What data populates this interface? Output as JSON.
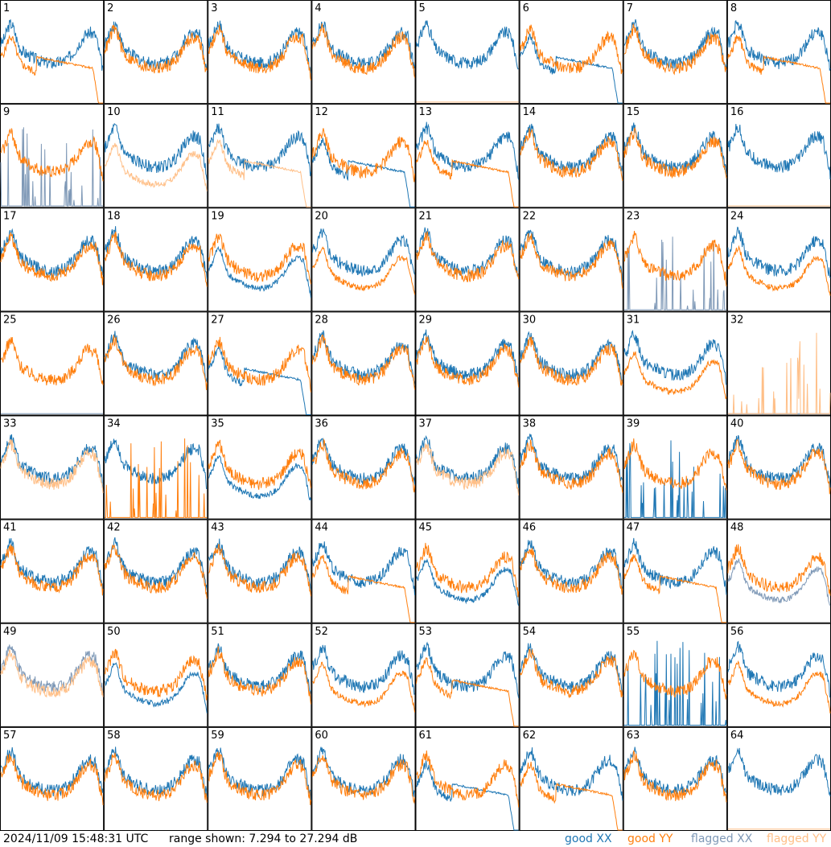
{
  "colors": {
    "good_xx": "#1f77b4",
    "good_yy": "#ff7f0e",
    "flagged_xx": "#7f99b7",
    "flagged_yy": "#ffbf87",
    "border": "#000000"
  },
  "footer": {
    "timestamp": "2024/11/09 15:48:31 UTC",
    "range_text": "range shown: 7.294 to 27.294 dB",
    "legend": {
      "good_xx": "good XX",
      "good_yy": "good YY",
      "flagged_xx": "flagged XX",
      "flagged_yy": "flagged YY"
    }
  },
  "chart_data": {
    "type": "line",
    "layout": "grid 8x8 small multiples",
    "ylim": [
      7.294,
      27.294
    ],
    "yunit": "dB",
    "series": [
      "good XX",
      "good YY",
      "flagged XX",
      "flagged YY"
    ],
    "grid": false,
    "legend_position": "bottom-right",
    "tiles": [
      {
        "id": "1",
        "xx": "good",
        "yy": "good",
        "xx_shape": "noisy",
        "yy_shape": "rolloff"
      },
      {
        "id": "2",
        "xx": "good",
        "yy": "good",
        "xx_shape": "normal",
        "yy_shape": "normal"
      },
      {
        "id": "3",
        "xx": "good",
        "yy": "good",
        "xx_shape": "normal",
        "yy_shape": "normal"
      },
      {
        "id": "4",
        "xx": "good",
        "yy": "good",
        "xx_shape": "normal",
        "yy_shape": "normal"
      },
      {
        "id": "5",
        "xx": "good",
        "yy": "flagged",
        "xx_shape": "normal",
        "yy_shape": "flat"
      },
      {
        "id": "6",
        "xx": "good",
        "yy": "good",
        "xx_shape": "rolloff",
        "yy_shape": "normal"
      },
      {
        "id": "7",
        "xx": "good",
        "yy": "good",
        "xx_shape": "normal",
        "yy_shape": "normal"
      },
      {
        "id": "8",
        "xx": "good",
        "yy": "good",
        "xx_shape": "normal",
        "yy_shape": "rolloff"
      },
      {
        "id": "9",
        "xx": "flagged",
        "yy": "good",
        "xx_shape": "spikes",
        "yy_shape": "normal"
      },
      {
        "id": "10",
        "xx": "good",
        "yy": "flagged",
        "xx_shape": "normal",
        "yy_shape": "low"
      },
      {
        "id": "11",
        "xx": "good",
        "yy": "flagged",
        "xx_shape": "normal",
        "yy_shape": "rolloff"
      },
      {
        "id": "12",
        "xx": "good",
        "yy": "good",
        "xx_shape": "rolloff",
        "yy_shape": "normal"
      },
      {
        "id": "13",
        "xx": "good",
        "yy": "good",
        "xx_shape": "normal",
        "yy_shape": "rolloff"
      },
      {
        "id": "14",
        "xx": "good",
        "yy": "good",
        "xx_shape": "normal",
        "yy_shape": "normal"
      },
      {
        "id": "15",
        "xx": "good",
        "yy": "good",
        "xx_shape": "normal",
        "yy_shape": "normal"
      },
      {
        "id": "16",
        "xx": "good",
        "yy": "flagged",
        "xx_shape": "normal",
        "yy_shape": "flat"
      },
      {
        "id": "17",
        "xx": "good",
        "yy": "good",
        "xx_shape": "normal",
        "yy_shape": "normal"
      },
      {
        "id": "18",
        "xx": "good",
        "yy": "good",
        "xx_shape": "normal",
        "yy_shape": "normal"
      },
      {
        "id": "19",
        "xx": "good",
        "yy": "good",
        "xx_shape": "low",
        "yy_shape": "normal"
      },
      {
        "id": "20",
        "xx": "good",
        "yy": "good",
        "xx_shape": "normal",
        "yy_shape": "low"
      },
      {
        "id": "21",
        "xx": "good",
        "yy": "good",
        "xx_shape": "normal",
        "yy_shape": "normal"
      },
      {
        "id": "22",
        "xx": "good",
        "yy": "good",
        "xx_shape": "normal",
        "yy_shape": "normal"
      },
      {
        "id": "23",
        "xx": "flagged",
        "yy": "good",
        "xx_shape": "spikes",
        "yy_shape": "normal"
      },
      {
        "id": "24",
        "xx": "good",
        "yy": "good",
        "xx_shape": "normal",
        "yy_shape": "low"
      },
      {
        "id": "25",
        "xx": "flagged",
        "yy": "good",
        "xx_shape": "flat",
        "yy_shape": "normal"
      },
      {
        "id": "26",
        "xx": "good",
        "yy": "good",
        "xx_shape": "normal",
        "yy_shape": "normal"
      },
      {
        "id": "27",
        "xx": "good",
        "yy": "good",
        "xx_shape": "rolloff",
        "yy_shape": "normal"
      },
      {
        "id": "28",
        "xx": "good",
        "yy": "good",
        "xx_shape": "normal",
        "yy_shape": "normal"
      },
      {
        "id": "29",
        "xx": "good",
        "yy": "good",
        "xx_shape": "normal",
        "yy_shape": "normal"
      },
      {
        "id": "30",
        "xx": "good",
        "yy": "good",
        "xx_shape": "normal",
        "yy_shape": "normal"
      },
      {
        "id": "31",
        "xx": "good",
        "yy": "good",
        "xx_shape": "normal",
        "yy_shape": "low"
      },
      {
        "id": "32",
        "xx": "flagged",
        "yy": "flagged",
        "xx_shape": "flat",
        "yy_shape": "spikes"
      },
      {
        "id": "33",
        "xx": "good",
        "yy": "flagged",
        "xx_shape": "normal",
        "yy_shape": "normal"
      },
      {
        "id": "34",
        "xx": "good",
        "yy": "good",
        "xx_shape": "normal",
        "yy_shape": "spikes"
      },
      {
        "id": "35",
        "xx": "good",
        "yy": "good",
        "xx_shape": "low",
        "yy_shape": "normal"
      },
      {
        "id": "36",
        "xx": "good",
        "yy": "good",
        "xx_shape": "normal",
        "yy_shape": "normal"
      },
      {
        "id": "37",
        "xx": "good",
        "yy": "flagged",
        "xx_shape": "normal",
        "yy_shape": "normal"
      },
      {
        "id": "38",
        "xx": "good",
        "yy": "good",
        "xx_shape": "normal",
        "yy_shape": "normal"
      },
      {
        "id": "39",
        "xx": "good",
        "yy": "good",
        "xx_shape": "spikes",
        "yy_shape": "normal"
      },
      {
        "id": "40",
        "xx": "good",
        "yy": "good",
        "xx_shape": "normal",
        "yy_shape": "normal"
      },
      {
        "id": "41",
        "xx": "good",
        "yy": "good",
        "xx_shape": "normal",
        "yy_shape": "normal"
      },
      {
        "id": "42",
        "xx": "good",
        "yy": "good",
        "xx_shape": "normal",
        "yy_shape": "normal"
      },
      {
        "id": "43",
        "xx": "good",
        "yy": "good",
        "xx_shape": "normal",
        "yy_shape": "normal"
      },
      {
        "id": "44",
        "xx": "good",
        "yy": "good",
        "xx_shape": "normal",
        "yy_shape": "rolloff"
      },
      {
        "id": "45",
        "xx": "good",
        "yy": "good",
        "xx_shape": "low",
        "yy_shape": "normal"
      },
      {
        "id": "46",
        "xx": "good",
        "yy": "good",
        "xx_shape": "normal",
        "yy_shape": "normal"
      },
      {
        "id": "47",
        "xx": "good",
        "yy": "good",
        "xx_shape": "normal",
        "yy_shape": "rolloff"
      },
      {
        "id": "48",
        "xx": "flagged",
        "yy": "good",
        "xx_shape": "low",
        "yy_shape": "normal"
      },
      {
        "id": "49",
        "xx": "flagged",
        "yy": "flagged",
        "xx_shape": "normal",
        "yy_shape": "normal"
      },
      {
        "id": "50",
        "xx": "good",
        "yy": "good",
        "xx_shape": "low",
        "yy_shape": "normal"
      },
      {
        "id": "51",
        "xx": "good",
        "yy": "good",
        "xx_shape": "normal",
        "yy_shape": "normal"
      },
      {
        "id": "52",
        "xx": "good",
        "yy": "good",
        "xx_shape": "normal",
        "yy_shape": "low"
      },
      {
        "id": "53",
        "xx": "good",
        "yy": "good",
        "xx_shape": "normal",
        "yy_shape": "rolloff"
      },
      {
        "id": "54",
        "xx": "good",
        "yy": "good",
        "xx_shape": "normal",
        "yy_shape": "normal"
      },
      {
        "id": "55",
        "xx": "good",
        "yy": "good",
        "xx_shape": "spikes",
        "yy_shape": "normal"
      },
      {
        "id": "56",
        "xx": "good",
        "yy": "good",
        "xx_shape": "normal",
        "yy_shape": "low"
      },
      {
        "id": "57",
        "xx": "good",
        "yy": "good",
        "xx_shape": "normal",
        "yy_shape": "normal"
      },
      {
        "id": "58",
        "xx": "good",
        "yy": "good",
        "xx_shape": "normal",
        "yy_shape": "normal"
      },
      {
        "id": "59",
        "xx": "good",
        "yy": "good",
        "xx_shape": "normal",
        "yy_shape": "normal"
      },
      {
        "id": "60",
        "xx": "good",
        "yy": "good",
        "xx_shape": "normal",
        "yy_shape": "normal"
      },
      {
        "id": "61",
        "xx": "good",
        "yy": "good",
        "xx_shape": "rolloff",
        "yy_shape": "normal"
      },
      {
        "id": "62",
        "xx": "good",
        "yy": "good",
        "xx_shape": "normal",
        "yy_shape": "rolloff"
      },
      {
        "id": "63",
        "xx": "good",
        "yy": "good",
        "xx_shape": "normal",
        "yy_shape": "normal"
      },
      {
        "id": "64",
        "xx": "good",
        "yy": "flagged",
        "xx_shape": "normal",
        "yy_shape": "flat"
      }
    ]
  }
}
